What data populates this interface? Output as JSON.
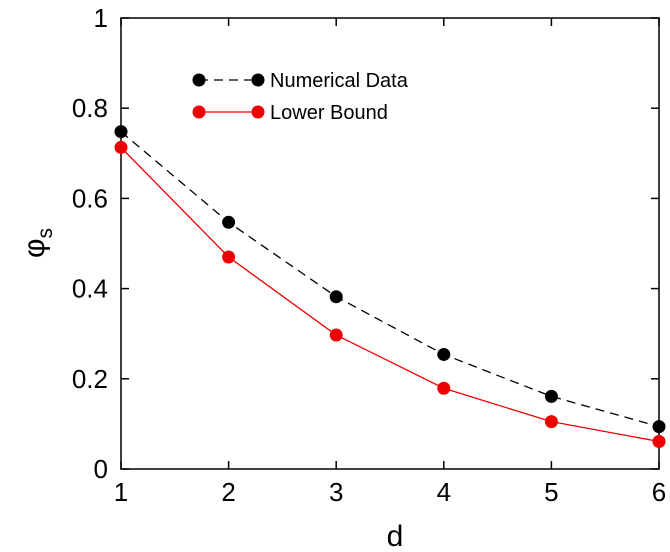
{
  "chart_data": {
    "type": "line",
    "x": [
      1,
      2,
      3,
      4,
      5,
      6
    ],
    "series": [
      {
        "name": "Numerical Data",
        "values": [
          0.748,
          0.547,
          0.382,
          0.254,
          0.161,
          0.094
        ],
        "color": "#000000",
        "line_style": "dashed",
        "marker": "circle"
      },
      {
        "name": "Lower Bound",
        "values": [
          0.713,
          0.47,
          0.297,
          0.179,
          0.105,
          0.061
        ],
        "color": "#ee0000",
        "line_style": "solid",
        "marker": "circle"
      }
    ],
    "xlabel": "d",
    "ylabel_main": "φ",
    "ylabel_sub": "s",
    "xlim": [
      1,
      6
    ],
    "ylim": [
      0,
      1
    ],
    "xticks": [
      1,
      2,
      3,
      4,
      5,
      6
    ],
    "yticks": [
      0,
      0.2,
      0.4,
      0.6,
      0.8,
      1
    ],
    "ytick_labels": [
      "0",
      "0.2",
      "0.4",
      "0.6",
      "0.8",
      "1"
    ],
    "grid": false,
    "legend_position": "top-left inside",
    "legend_box": false
  }
}
